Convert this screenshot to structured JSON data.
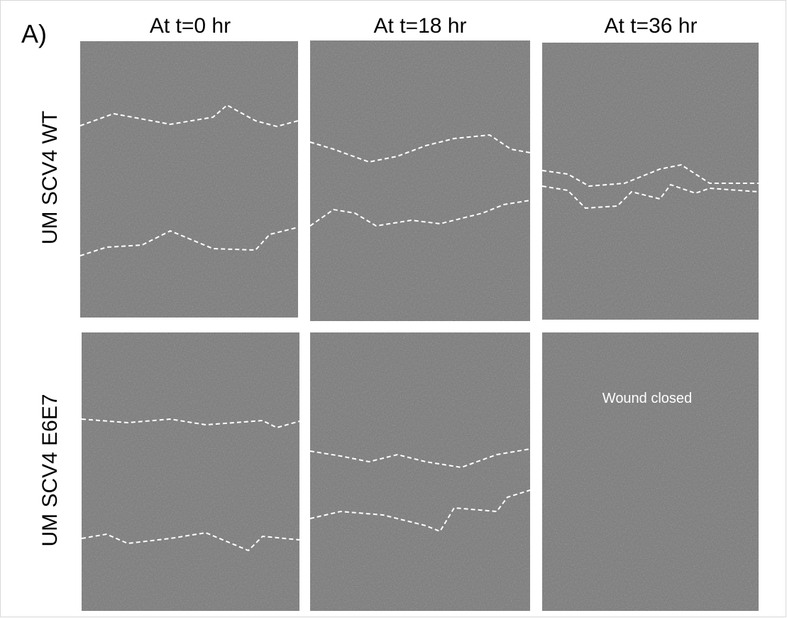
{
  "panel_label": "A)",
  "columns": [
    "At t=0 hr",
    "At t=18 hr",
    "At t=36 hr"
  ],
  "rows": [
    "UM SCV4 WT",
    "UM SCV4 E6E7"
  ],
  "annotation": "Wound closed"
}
